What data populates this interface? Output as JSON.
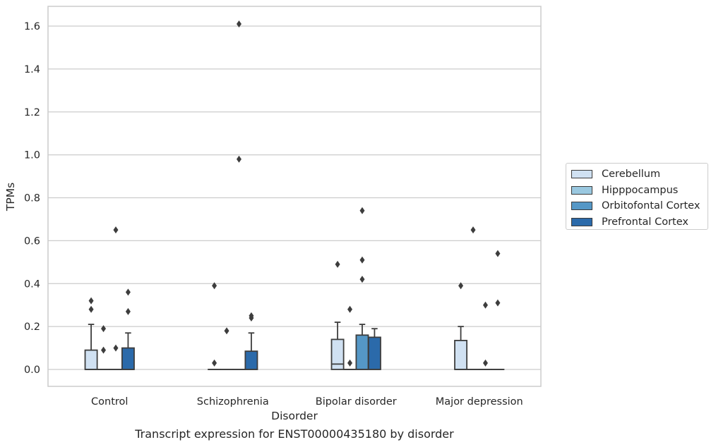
{
  "chart_data": {
    "type": "box",
    "title": "",
    "xlabel": "Disorder",
    "ylabel": "TPMs",
    "caption": "Transcript expression for ENST00000435180 by disorder",
    "ylim": [
      -0.08,
      1.69
    ],
    "yticks": [
      0.0,
      0.2,
      0.4,
      0.6,
      0.8,
      1.0,
      1.2,
      1.4,
      1.6
    ],
    "ytick_labels": [
      "0.0",
      "0.2",
      "0.4",
      "0.6",
      "0.8",
      "1.0",
      "1.2",
      "1.4",
      "1.6"
    ],
    "grid": "horizontal",
    "legend_position": "right",
    "categories": [
      "Control",
      "Schizophrenia",
      "Bipolar disorder",
      "Major depression"
    ],
    "series": [
      {
        "name": "Cerebellum",
        "color": "#d0e1f2",
        "boxes": [
          {
            "q1": 0.0,
            "median": 0.0,
            "q3": 0.09,
            "whisker_low": 0.0,
            "whisker_high": 0.21,
            "outliers": [
              0.28,
              0.32
            ]
          },
          {
            "q1": 0.0,
            "median": 0.0,
            "q3": 0.0,
            "whisker_low": 0.0,
            "whisker_high": 0.0,
            "outliers": [
              0.03,
              0.39
            ]
          },
          {
            "q1": 0.0,
            "median": 0.025,
            "q3": 0.14,
            "whisker_low": 0.0,
            "whisker_high": 0.22,
            "outliers": [
              0.49
            ]
          },
          {
            "q1": 0.0,
            "median": 0.0,
            "q3": 0.135,
            "whisker_low": 0.0,
            "whisker_high": 0.2,
            "outliers": [
              0.39
            ]
          }
        ]
      },
      {
        "name": "Hipppocampus",
        "color": "#9ac8e0",
        "boxes": [
          {
            "q1": 0.0,
            "median": 0.0,
            "q3": 0.0,
            "whisker_low": 0.0,
            "whisker_high": 0.0,
            "outliers": [
              0.09,
              0.19
            ]
          },
          {
            "q1": 0.0,
            "median": 0.0,
            "q3": 0.0,
            "whisker_low": 0.0,
            "whisker_high": 0.0,
            "outliers": [
              0.18
            ]
          },
          {
            "q1": 0.0,
            "median": 0.0,
            "q3": 0.0,
            "whisker_low": 0.0,
            "whisker_high": 0.0,
            "outliers": [
              0.03,
              0.28
            ]
          },
          {
            "q1": 0.0,
            "median": 0.0,
            "q3": 0.0,
            "whisker_low": 0.0,
            "whisker_high": 0.0,
            "outliers": [
              0.65
            ]
          }
        ]
      },
      {
        "name": "Orbitofontal Cortex",
        "color": "#5597c6",
        "boxes": [
          {
            "q1": 0.0,
            "median": 0.0,
            "q3": 0.0,
            "whisker_low": 0.0,
            "whisker_high": 0.0,
            "outliers": [
              0.1,
              0.65
            ]
          },
          {
            "q1": 0.0,
            "median": 0.0,
            "q3": 0.0,
            "whisker_low": 0.0,
            "whisker_high": 0.0,
            "outliers": [
              0.98,
              1.61
            ]
          },
          {
            "q1": 0.0,
            "median": 0.0,
            "q3": 0.16,
            "whisker_low": 0.0,
            "whisker_high": 0.21,
            "outliers": [
              0.42,
              0.51,
              0.74
            ]
          },
          {
            "q1": 0.0,
            "median": 0.0,
            "q3": 0.0,
            "whisker_low": 0.0,
            "whisker_high": 0.0,
            "outliers": [
              0.03,
              0.3
            ]
          }
        ]
      },
      {
        "name": "Prefrontal Cortex",
        "color": "#2b6aaa",
        "boxes": [
          {
            "q1": 0.0,
            "median": 0.0,
            "q3": 0.1,
            "whisker_low": 0.0,
            "whisker_high": 0.17,
            "outliers": [
              0.27,
              0.36
            ]
          },
          {
            "q1": 0.0,
            "median": 0.0,
            "q3": 0.085,
            "whisker_low": 0.0,
            "whisker_high": 0.17,
            "outliers": [
              0.24,
              0.25
            ]
          },
          {
            "q1": 0.0,
            "median": 0.0,
            "q3": 0.15,
            "whisker_low": 0.0,
            "whisker_high": 0.19,
            "outliers": []
          },
          {
            "q1": 0.0,
            "median": 0.0,
            "q3": 0.0,
            "whisker_low": 0.0,
            "whisker_high": 0.0,
            "outliers": [
              0.31,
              0.54
            ]
          }
        ]
      }
    ]
  }
}
